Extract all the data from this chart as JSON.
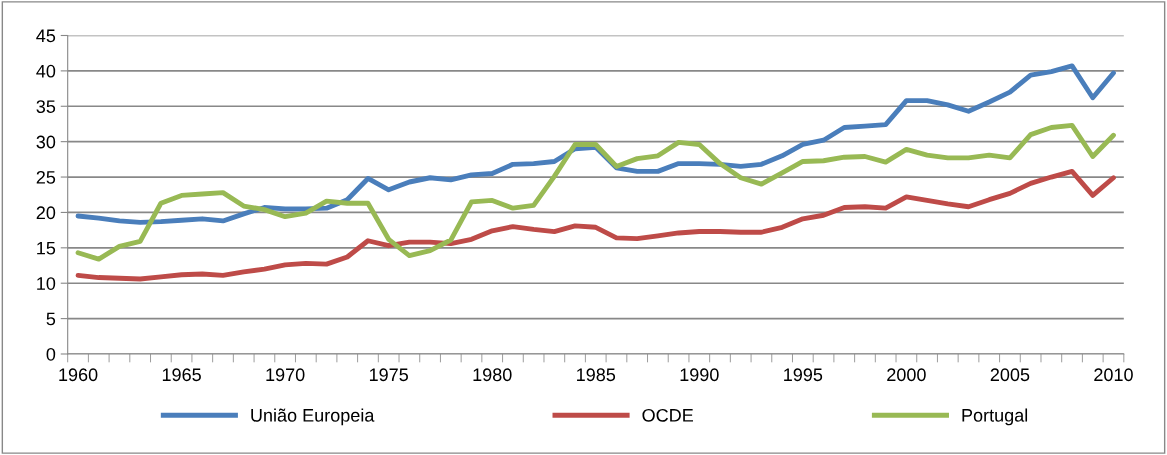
{
  "chart_data": {
    "type": "line",
    "categories": [
      "1960",
      null,
      null,
      null,
      null,
      "1965",
      null,
      null,
      null,
      null,
      "1970",
      null,
      null,
      null,
      null,
      "1975",
      null,
      null,
      null,
      null,
      "1980",
      null,
      null,
      null,
      null,
      "1985",
      null,
      null,
      null,
      null,
      "1990",
      null,
      null,
      null,
      null,
      "1995",
      null,
      null,
      null,
      null,
      "2000",
      null,
      null,
      null,
      null,
      "2005",
      null,
      null,
      null,
      null,
      "2010"
    ],
    "series": [
      {
        "name": "União Europeia",
        "color": "#4a7ebb",
        "values": [
          19.5,
          19.2,
          18.8,
          18.6,
          18.7,
          18.9,
          19.1,
          18.8,
          19.8,
          20.7,
          20.5,
          20.5,
          20.6,
          21.8,
          24.8,
          23.2,
          24.3,
          24.9,
          24.6,
          25.3,
          25.5,
          26.8,
          26.9,
          27.2,
          29.0,
          29.2,
          26.3,
          25.8,
          25.8,
          26.9,
          26.9,
          26.8,
          26.5,
          26.8,
          28.0,
          29.6,
          30.2,
          32.0,
          32.2,
          32.4,
          35.8,
          35.8,
          35.2,
          34.3,
          35.6,
          37.0,
          39.4,
          39.9,
          40.7,
          36.2,
          39.7
        ]
      },
      {
        "name": "OCDE",
        "color": "#be4b48",
        "values": [
          11.1,
          10.8,
          10.7,
          10.6,
          10.9,
          11.2,
          11.3,
          11.1,
          11.6,
          12.0,
          12.6,
          12.8,
          12.7,
          13.7,
          16.0,
          15.3,
          15.8,
          15.8,
          15.6,
          16.2,
          17.4,
          18.0,
          17.6,
          17.3,
          18.1,
          17.9,
          16.4,
          16.3,
          16.7,
          17.1,
          17.3,
          17.3,
          17.2,
          17.2,
          17.9,
          19.1,
          19.6,
          20.7,
          20.8,
          20.6,
          22.2,
          21.7,
          21.2,
          20.8,
          21.8,
          22.7,
          24.1,
          25.0,
          25.8,
          22.4,
          24.9
        ]
      },
      {
        "name": "Portugal",
        "color": "#98b954",
        "values": [
          14.3,
          13.4,
          15.2,
          15.9,
          21.3,
          22.4,
          22.6,
          22.8,
          20.9,
          20.4,
          19.4,
          19.9,
          21.6,
          21.3,
          21.3,
          16.2,
          13.9,
          14.6,
          16.1,
          21.5,
          21.7,
          20.6,
          21.0,
          25.1,
          29.6,
          29.6,
          26.5,
          27.6,
          28.0,
          29.9,
          29.6,
          26.9,
          24.9,
          24.0,
          25.6,
          27.2,
          27.3,
          27.8,
          27.9,
          27.1,
          28.9,
          28.1,
          27.7,
          27.7,
          28.1,
          27.7,
          31.0,
          32.0,
          32.3,
          27.9,
          30.9
        ]
      }
    ],
    "ylim": [
      0,
      45
    ],
    "yticks": [
      0,
      5,
      10,
      15,
      20,
      25,
      30,
      35,
      40,
      45
    ],
    "grid": "y",
    "legend": "bottom",
    "marker": "none",
    "line_style": "solid"
  }
}
